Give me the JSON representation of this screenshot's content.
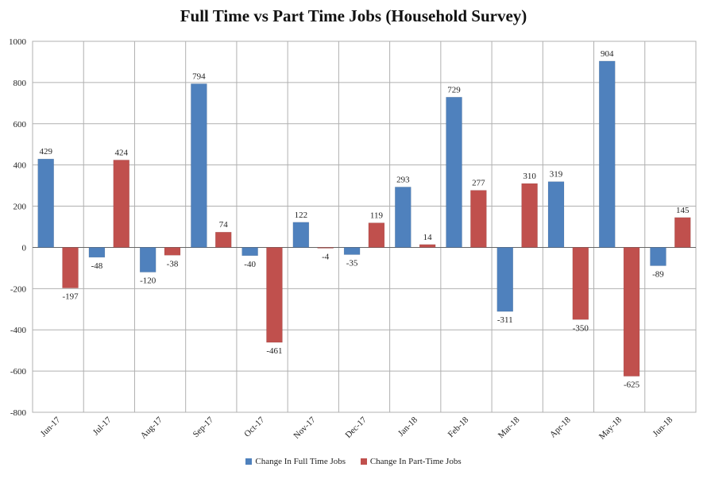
{
  "colors": {
    "full_time": "#4f81bd",
    "part_time": "#c0504d",
    "grid": "#b0b0b0",
    "axis": "#666666"
  },
  "chart_data": {
    "type": "bar",
    "title": "Full Time vs Part Time Jobs (Household Survey)",
    "xlabel": "",
    "ylabel": "",
    "ylim": [
      -800,
      1000
    ],
    "yticks": [
      1000,
      800,
      600,
      400,
      200,
      0,
      -200,
      -400,
      -600,
      -800
    ],
    "grid": true,
    "legend_position": "bottom",
    "categories": [
      "Jun-17",
      "Jul-17",
      "Aug-17",
      "Sep-17",
      "Oct-17",
      "Nov-17",
      "Dec-17",
      "Jan-18",
      "Feb-18",
      "Mar-18",
      "Apr-18",
      "May-18",
      "Jun-18"
    ],
    "series": [
      {
        "name": "Change In Full Time Jobs",
        "values": [
          429,
          -48,
          -120,
          794,
          -40,
          122,
          -35,
          293,
          729,
          -311,
          319,
          904,
          -89
        ]
      },
      {
        "name": "Change In Part-Time Jobs",
        "values": [
          -197,
          424,
          -38,
          74,
          -461,
          -4,
          119,
          14,
          277,
          310,
          -350,
          -625,
          145
        ]
      }
    ]
  }
}
